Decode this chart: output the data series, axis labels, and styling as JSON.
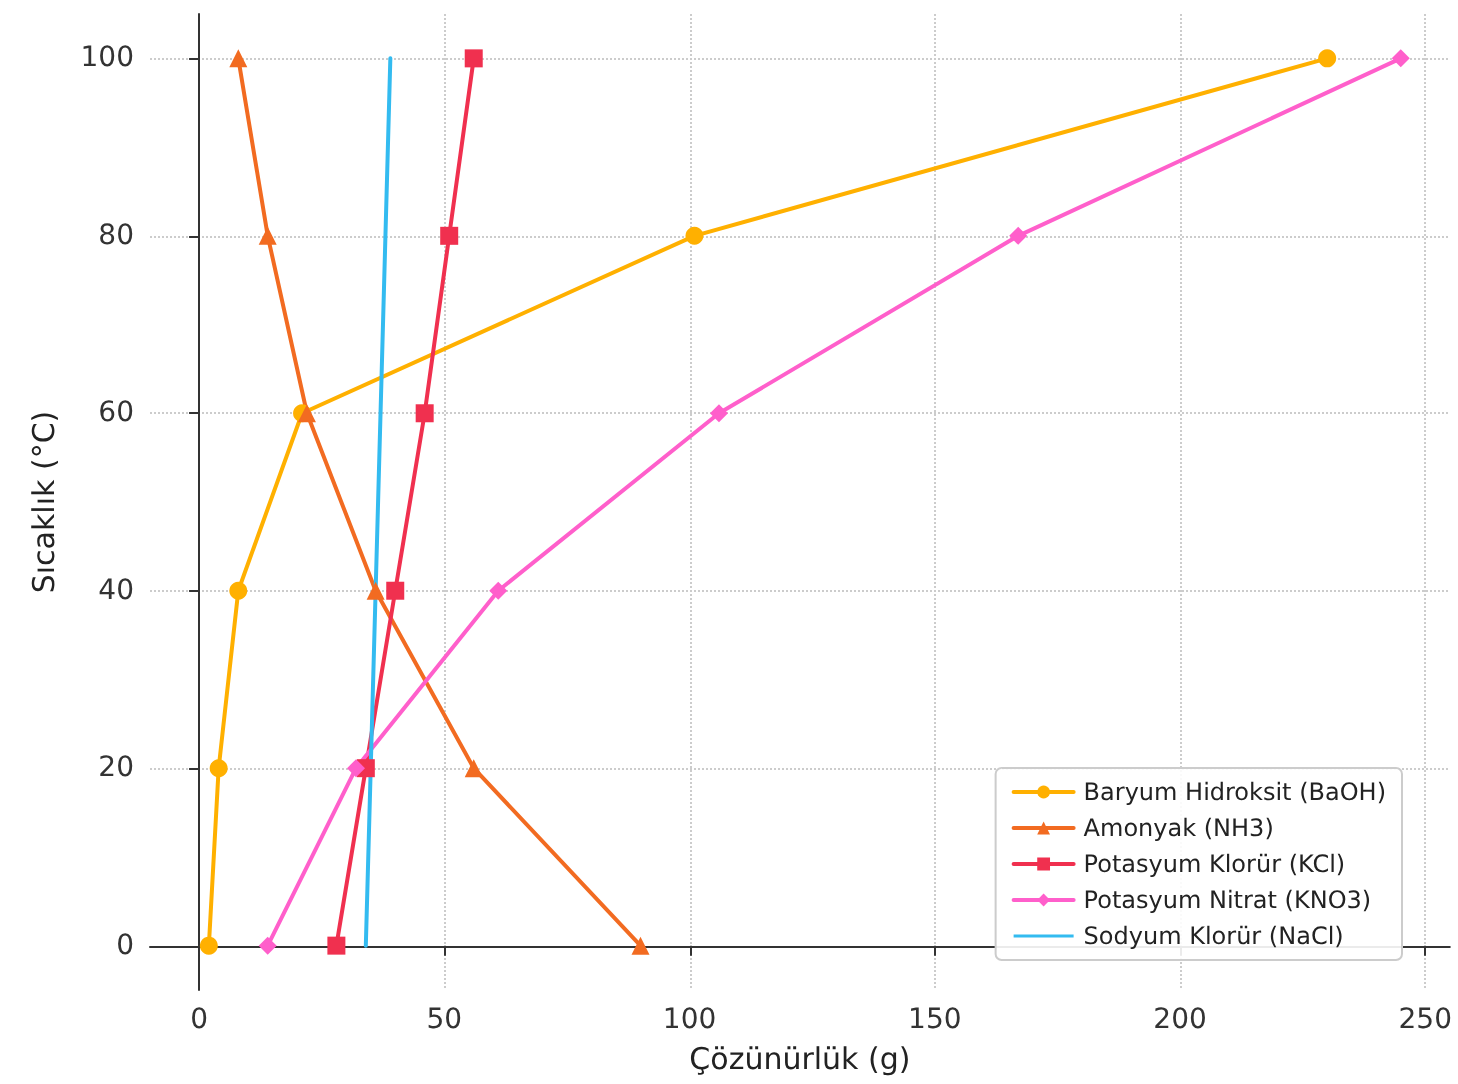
{
  "chart_data": {
    "type": "line",
    "xlabel": "Çözünürlük (g)",
    "ylabel": "Sıcaklık (°C)",
    "xlim": [
      -10,
      255
    ],
    "xticks": [
      0,
      50,
      100,
      150,
      200,
      250
    ],
    "ylim": [
      -5,
      105
    ],
    "yticks": [
      0,
      20,
      40,
      60,
      80,
      100
    ],
    "grid": true,
    "legend": "bottom right",
    "line_style": "solid",
    "series": [
      {
        "name": "Baryum Hidroksit (BaOH)",
        "color": "#ffb000",
        "marker": "circle",
        "x": [
          2,
          4,
          8,
          21,
          101,
          230
        ],
        "values": [
          0,
          20,
          40,
          60,
          80,
          100
        ]
      },
      {
        "name": "Amonyak (NH3)",
        "color": "#f26b21",
        "marker": "triangle",
        "x": [
          90,
          56,
          36,
          22,
          14,
          8
        ],
        "values": [
          0,
          20,
          40,
          60,
          80,
          100
        ]
      },
      {
        "name": "Potasyum Klorür (KCl)",
        "color": "#f0304f",
        "marker": "square",
        "x": [
          28,
          34,
          40,
          46,
          51,
          56
        ],
        "values": [
          0,
          20,
          40,
          60,
          80,
          100
        ]
      },
      {
        "name": "Potasyum Nitrat (KNO3)",
        "color": "#ff5fcb",
        "marker": "diamond",
        "x": [
          14,
          32,
          61,
          106,
          167,
          245
        ],
        "values": [
          0,
          20,
          40,
          60,
          80,
          100
        ]
      },
      {
        "name": "Sodyum Klorür (NaCl)",
        "color": "#33bbf0",
        "marker": "none",
        "x": [
          34,
          39
        ],
        "values": [
          0,
          100
        ]
      }
    ]
  }
}
